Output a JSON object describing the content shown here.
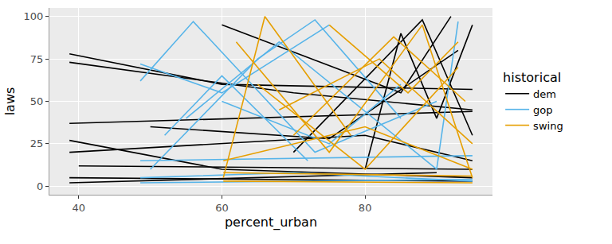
{
  "chart_data": {
    "type": "line",
    "x_label": "percent_urban",
    "y_label": "laws",
    "legend_title": "historical",
    "legend": "right",
    "grid": true,
    "xlim": [
      35.9,
      97.8
    ],
    "xticks": [
      40,
      60,
      80
    ],
    "ylim": [
      -5,
      105
    ],
    "yticks": [
      0,
      25,
      50,
      75,
      100
    ],
    "series": [
      {
        "name": "dem",
        "color": "#000000",
        "x": [
          38.7,
          60,
          95,
          null,
          38.7,
          70,
          95,
          null,
          38.7,
          95,
          null,
          38.7,
          80,
          95,
          null,
          38.7,
          60,
          95,
          null,
          38.7,
          95,
          null,
          38.7,
          90,
          null,
          60,
          85,
          92,
          null,
          70,
          88,
          95,
          null,
          80,
          85,
          90,
          95,
          null,
          50,
          75,
          93,
          null,
          40,
          95
        ],
        "values": [
          78,
          60,
          57,
          null,
          73,
          55,
          45,
          null,
          37,
          44,
          null,
          20,
          30,
          15,
          null,
          27,
          10,
          5,
          null,
          5,
          3,
          null,
          2,
          8,
          null,
          95,
          55,
          100,
          null,
          20,
          98,
          30,
          null,
          10,
          90,
          40,
          95,
          null,
          35,
          28,
          80,
          null,
          12,
          10
        ]
      },
      {
        "name": "gop",
        "color": "#56B4E9",
        "x": [
          48.6,
          56,
          73,
          90,
          null,
          48.6,
          60,
          75,
          null,
          50,
          65,
          73,
          85,
          null,
          48.6,
          70,
          95,
          null,
          52,
          60,
          72,
          null,
          55,
          68,
          90,
          93,
          null,
          48.6,
          95,
          null,
          60,
          75,
          85,
          null,
          48.6,
          95
        ],
        "values": [
          62,
          97,
          20,
          50,
          null,
          72,
          55,
          95,
          null,
          10,
          75,
          98,
          40,
          null,
          5,
          8,
          3,
          null,
          30,
          65,
          15,
          null,
          40,
          85,
          10,
          97,
          null,
          15,
          18,
          null,
          50,
          25,
          60,
          null,
          2,
          4
        ]
      },
      {
        "name": "swing",
        "color": "#E69F00",
        "x": [
          60.2,
          66,
          78,
          null,
          62,
          75,
          88,
          95,
          null,
          60.2,
          95,
          null,
          65,
          80,
          93,
          null,
          70,
          84,
          94,
          null,
          60.2,
          80,
          95,
          null,
          75,
          86,
          93,
          null,
          60.2,
          95,
          null,
          68,
          82,
          95
        ],
        "values": [
          5,
          100,
          30,
          null,
          85,
          20,
          95,
          5,
          null,
          3,
          2,
          null,
          60,
          10,
          70,
          null,
          30,
          88,
          50,
          null,
          15,
          35,
          10,
          null,
          95,
          55,
          85,
          null,
          8,
          6,
          null,
          45,
          75,
          25
        ]
      }
    ]
  }
}
